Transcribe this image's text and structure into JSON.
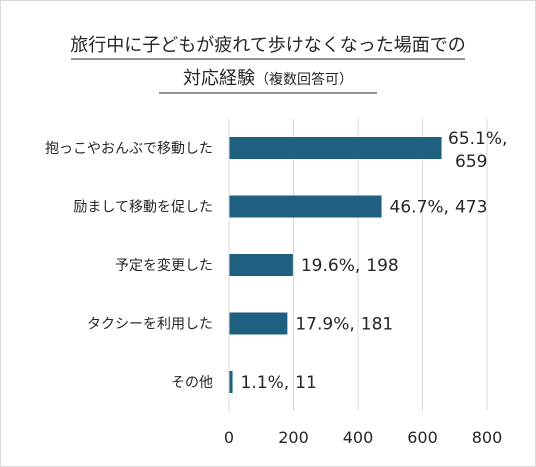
{
  "chart_data": {
    "type": "bar",
    "orientation": "horizontal",
    "title_line1": "旅行中に子どもが疲れて歩けなくなった場面での",
    "title_line2_main": "対応経験",
    "title_line2_note": "（複数回答可）",
    "categories": [
      "抱っこやおんぶで移動した",
      "励まして移動を促した",
      "予定を変更した",
      "タクシーを利用した",
      "その他"
    ],
    "values": [
      659,
      473,
      198,
      181,
      11
    ],
    "percent_labels": [
      "65.1%,",
      "46.7%,",
      "19.6%,",
      "17.9%,",
      "1.1%,"
    ],
    "count_labels": [
      "659",
      "473",
      "198",
      "181",
      "11"
    ],
    "xlim": [
      0,
      800
    ],
    "xticks": [
      "0",
      "200",
      "400",
      "600",
      "800"
    ],
    "grid": true,
    "legend": "none",
    "bar_color": "#1f5f7f",
    "grid_color": "#d9d9d9"
  }
}
